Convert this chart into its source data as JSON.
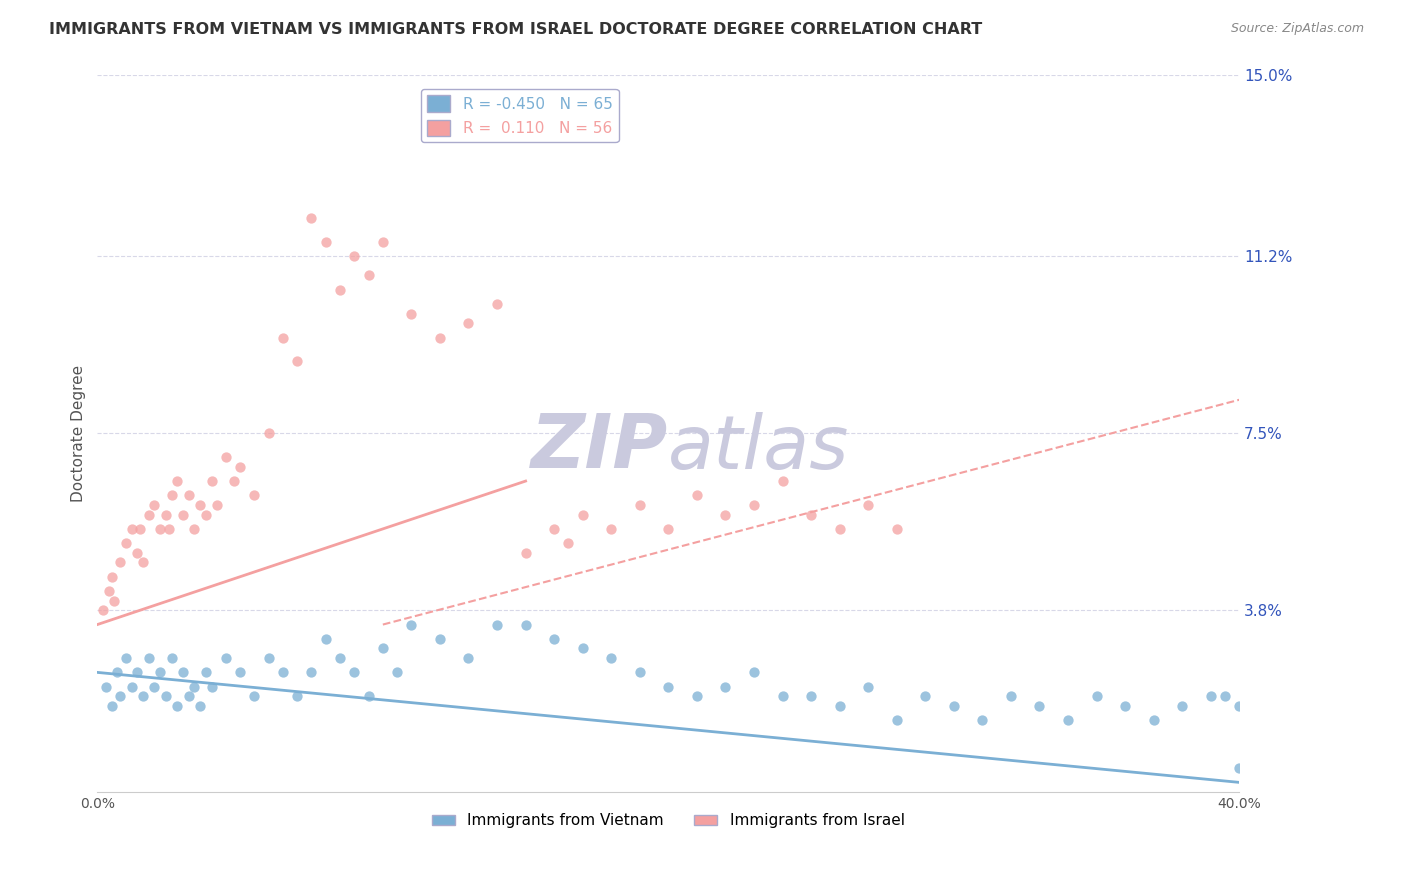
{
  "title": "IMMIGRANTS FROM VIETNAM VS IMMIGRANTS FROM ISRAEL DOCTORATE DEGREE CORRELATION CHART",
  "source": "Source: ZipAtlas.com",
  "xlabel": "",
  "ylabel": "Doctorate Degree",
  "xlim": [
    0.0,
    40.0
  ],
  "ylim": [
    0.0,
    15.0
  ],
  "y_tick_labels_right": [
    "3.8%",
    "7.5%",
    "11.2%",
    "15.0%"
  ],
  "y_tick_values_right": [
    3.8,
    7.5,
    11.2,
    15.0
  ],
  "vietnam_color": "#7BAFD4",
  "israel_color": "#F4A0A0",
  "vietnam_R": -0.45,
  "vietnam_N": 65,
  "israel_R": 0.11,
  "israel_N": 56,
  "grid_color": "#D8D8E8",
  "background_color": "#FFFFFF",
  "watermark_color": "#CACADE",
  "title_color": "#333333",
  "source_color": "#888888",
  "ylabel_color": "#555555",
  "tick_color": "#555555",
  "right_tick_color": "#3355BB",
  "legend_edge_color": "#AAAACC",
  "vietnam_trend_x0": 0.0,
  "vietnam_trend_y0": 2.5,
  "vietnam_trend_x1": 40.0,
  "vietnam_trend_y1": 0.2,
  "israel_solid_x0": 0.0,
  "israel_solid_y0": 3.5,
  "israel_solid_x1": 15.0,
  "israel_solid_y1": 6.5,
  "israel_dash_x0": 10.0,
  "israel_dash_y0": 3.5,
  "israel_dash_x1": 40.0,
  "israel_dash_y1": 8.2,
  "vietnam_scatter_x": [
    0.3,
    0.5,
    0.7,
    0.8,
    1.0,
    1.2,
    1.4,
    1.6,
    1.8,
    2.0,
    2.2,
    2.4,
    2.6,
    2.8,
    3.0,
    3.2,
    3.4,
    3.6,
    3.8,
    4.0,
    4.5,
    5.0,
    5.5,
    6.0,
    6.5,
    7.0,
    7.5,
    8.0,
    8.5,
    9.0,
    9.5,
    10.0,
    10.5,
    11.0,
    12.0,
    13.0,
    14.0,
    15.0,
    16.0,
    17.0,
    18.0,
    19.0,
    20.0,
    21.0,
    22.0,
    23.0,
    24.0,
    25.0,
    26.0,
    27.0,
    28.0,
    29.0,
    30.0,
    31.0,
    32.0,
    33.0,
    34.0,
    35.0,
    36.0,
    37.0,
    38.0,
    39.0,
    39.5,
    40.0,
    40.0
  ],
  "vietnam_scatter_y": [
    2.2,
    1.8,
    2.5,
    2.0,
    2.8,
    2.2,
    2.5,
    2.0,
    2.8,
    2.2,
    2.5,
    2.0,
    2.8,
    1.8,
    2.5,
    2.0,
    2.2,
    1.8,
    2.5,
    2.2,
    2.8,
    2.5,
    2.0,
    2.8,
    2.5,
    2.0,
    2.5,
    3.2,
    2.8,
    2.5,
    2.0,
    3.0,
    2.5,
    3.5,
    3.2,
    2.8,
    3.5,
    3.5,
    3.2,
    3.0,
    2.8,
    2.5,
    2.2,
    2.0,
    2.2,
    2.5,
    2.0,
    2.0,
    1.8,
    2.2,
    1.5,
    2.0,
    1.8,
    1.5,
    2.0,
    1.8,
    1.5,
    2.0,
    1.8,
    1.5,
    1.8,
    2.0,
    2.0,
    0.5,
    1.8
  ],
  "israel_scatter_x": [
    0.2,
    0.4,
    0.5,
    0.6,
    0.8,
    1.0,
    1.2,
    1.4,
    1.5,
    1.6,
    1.8,
    2.0,
    2.2,
    2.4,
    2.5,
    2.6,
    2.8,
    3.0,
    3.2,
    3.4,
    3.6,
    3.8,
    4.0,
    4.2,
    4.5,
    4.8,
    5.0,
    5.5,
    6.0,
    6.5,
    7.0,
    7.5,
    8.0,
    8.5,
    9.0,
    9.5,
    10.0,
    11.0,
    12.0,
    13.0,
    14.0,
    15.0,
    16.0,
    16.5,
    17.0,
    18.0,
    19.0,
    20.0,
    21.0,
    22.0,
    23.0,
    24.0,
    25.0,
    26.0,
    27.0,
    28.0
  ],
  "israel_scatter_y": [
    3.8,
    4.2,
    4.5,
    4.0,
    4.8,
    5.2,
    5.5,
    5.0,
    5.5,
    4.8,
    5.8,
    6.0,
    5.5,
    5.8,
    5.5,
    6.2,
    6.5,
    5.8,
    6.2,
    5.5,
    6.0,
    5.8,
    6.5,
    6.0,
    7.0,
    6.5,
    6.8,
    6.2,
    7.5,
    9.5,
    9.0,
    12.0,
    11.5,
    10.5,
    11.2,
    10.8,
    11.5,
    10.0,
    9.5,
    9.8,
    10.2,
    5.0,
    5.5,
    5.2,
    5.8,
    5.5,
    6.0,
    5.5,
    6.2,
    5.8,
    6.0,
    6.5,
    5.8,
    5.5,
    6.0,
    5.5
  ]
}
